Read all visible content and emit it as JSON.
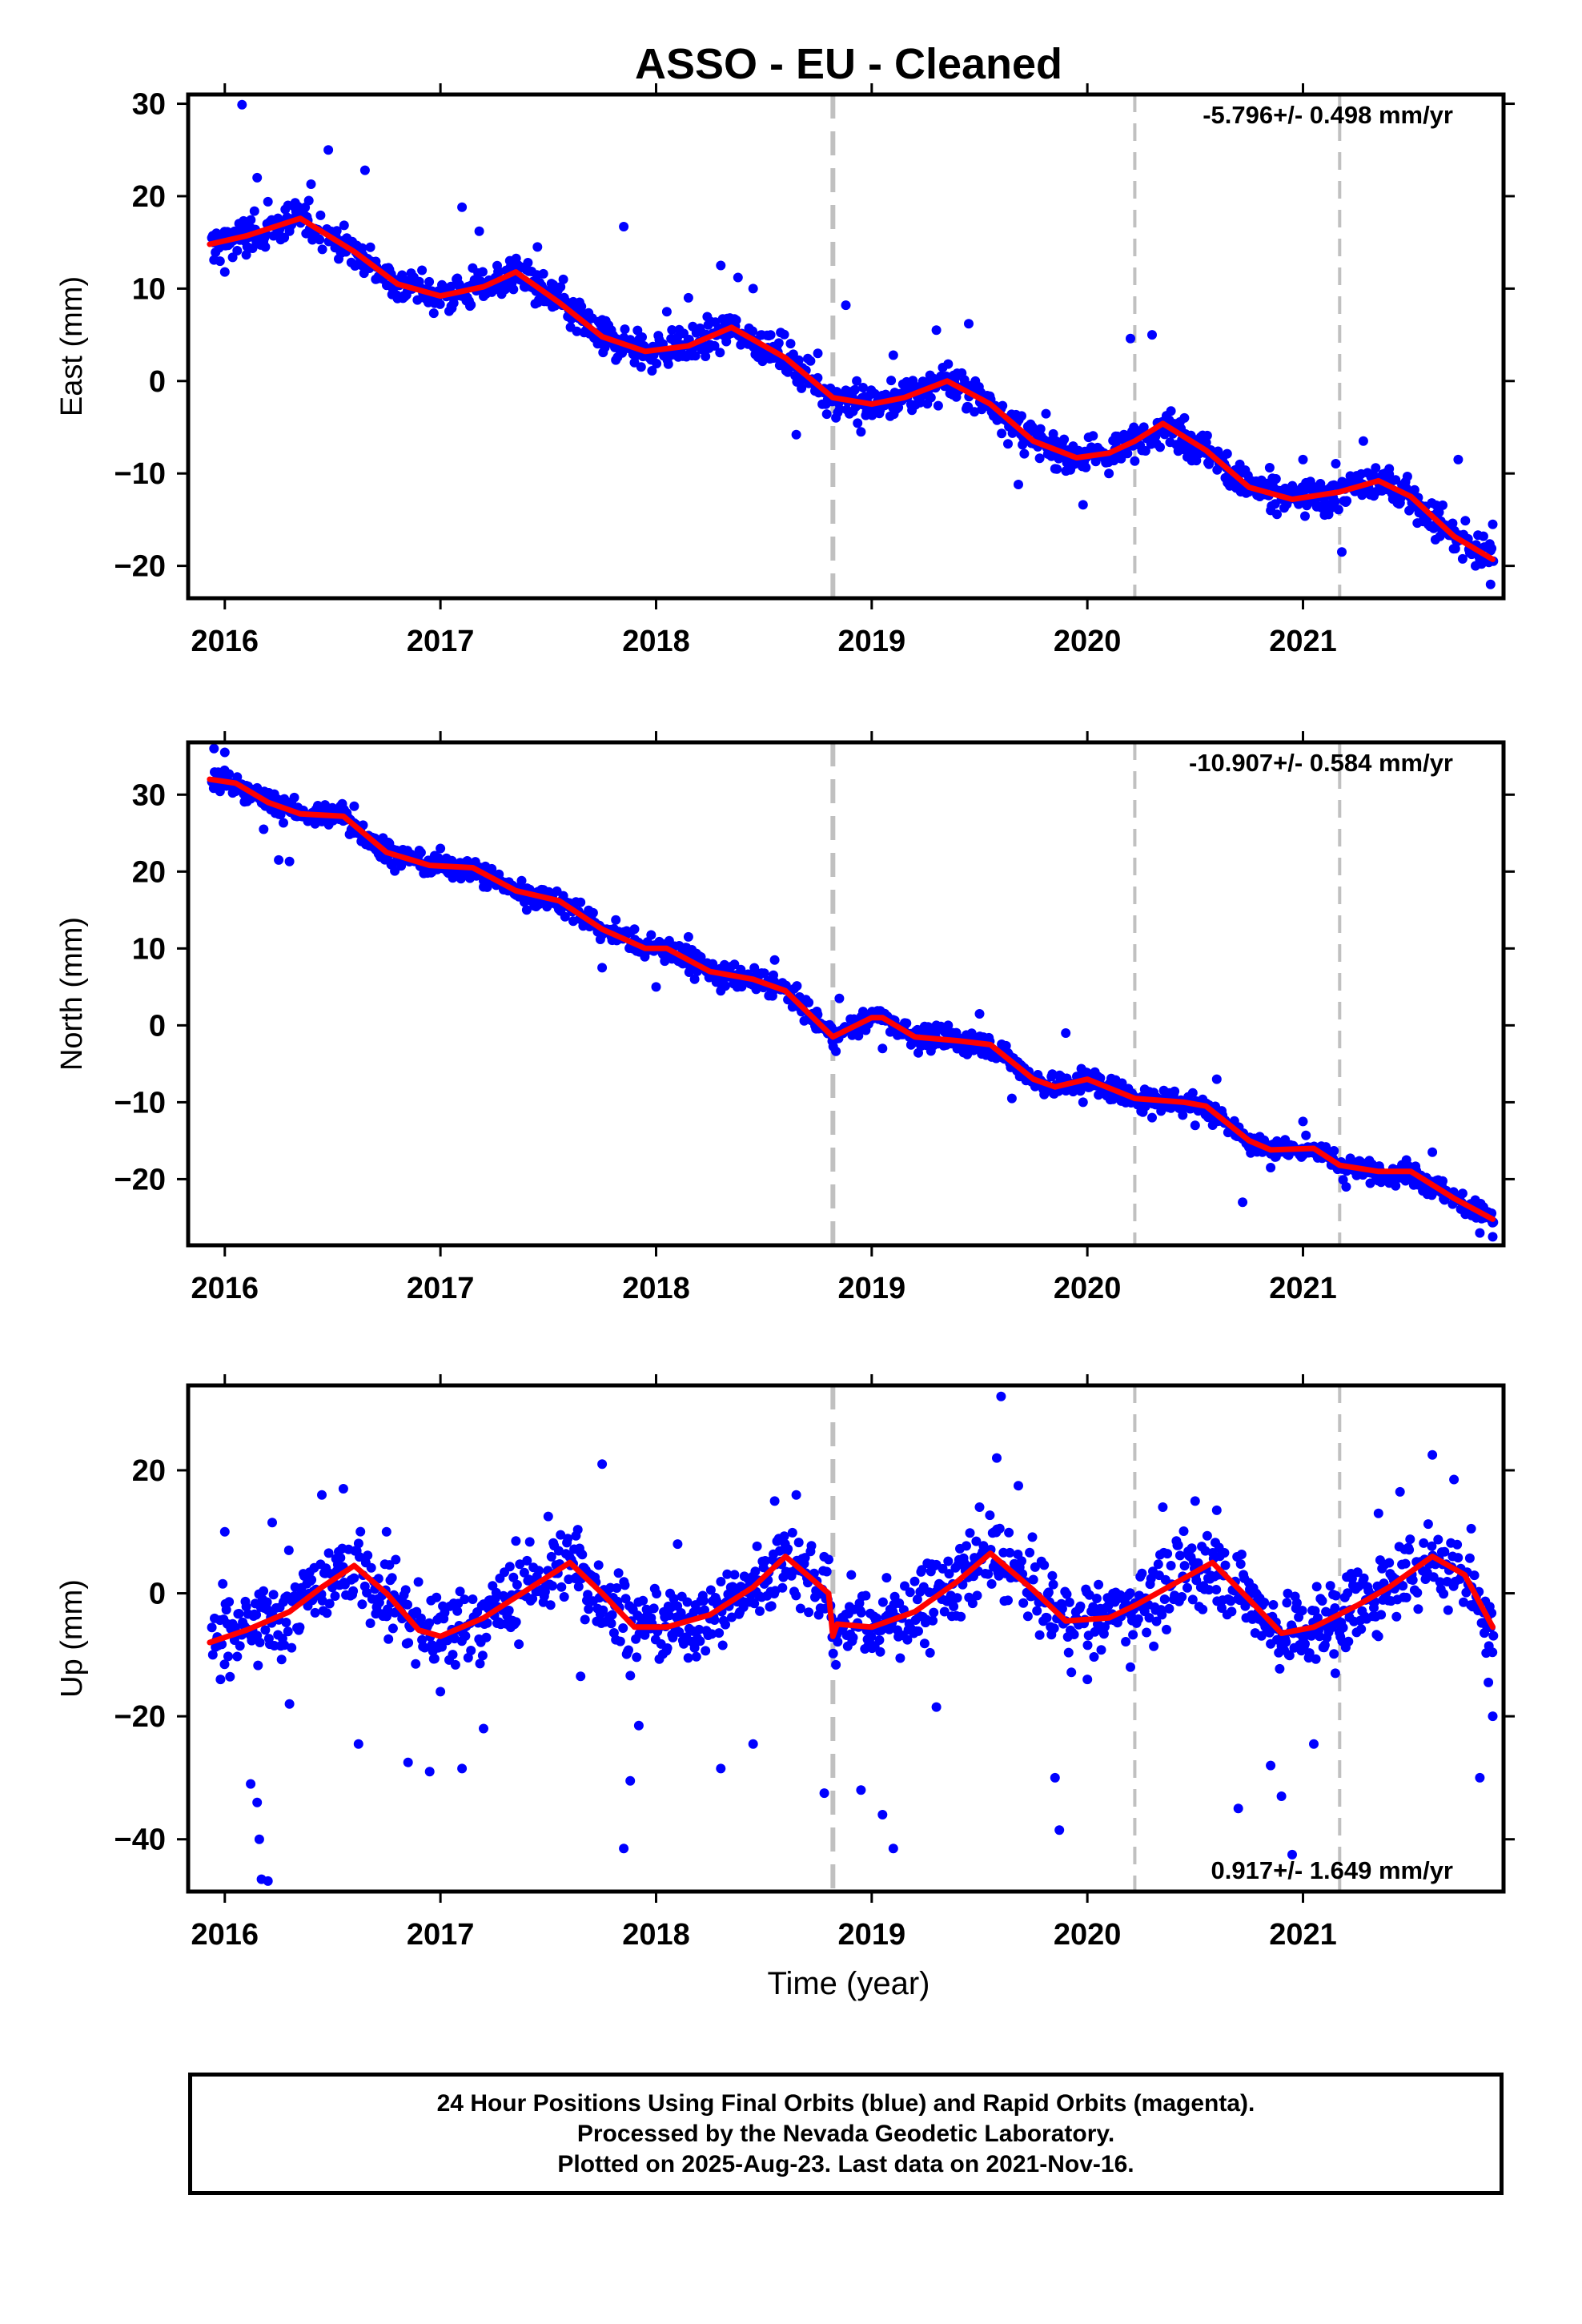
{
  "chart_data": {
    "type": "scatter",
    "title": "ASSO  - EU - Cleaned",
    "xlabel": "Time (year)",
    "x_range": [
      2015.83,
      2021.93
    ],
    "x_ticks": [
      2016,
      2017,
      2018,
      2019,
      2020,
      2021
    ],
    "vertical_lines": [
      {
        "x": 2018.82,
        "style": "thick-dashed"
      },
      {
        "x": 2020.22,
        "style": "dashed"
      },
      {
        "x": 2021.17,
        "style": "dashed"
      }
    ],
    "point_color": "#0000ff",
    "fit_color": "#ff0000",
    "panels": [
      {
        "name": "east",
        "ylabel": "East (mm)",
        "ylim": [
          -23.5,
          31
        ],
        "yticks": [
          30,
          20,
          10,
          0,
          -10,
          -20
        ],
        "rate_label": "-5.796+/- 0.498 mm/yr",
        "rate_position": "top-right",
        "fit": [
          [
            2015.93,
            14.8
          ],
          [
            2016.1,
            15.7
          ],
          [
            2016.35,
            17.6
          ],
          [
            2016.6,
            14.0
          ],
          [
            2016.8,
            10.5
          ],
          [
            2017.0,
            9.2
          ],
          [
            2017.2,
            10.2
          ],
          [
            2017.35,
            11.8
          ],
          [
            2017.55,
            8.5
          ],
          [
            2017.75,
            4.8
          ],
          [
            2017.95,
            3.2
          ],
          [
            2018.15,
            3.8
          ],
          [
            2018.35,
            5.8
          ],
          [
            2018.6,
            2.5
          ],
          [
            2018.82,
            -1.8
          ],
          [
            2019.0,
            -2.5
          ],
          [
            2019.15,
            -1.8
          ],
          [
            2019.35,
            0.0
          ],
          [
            2019.55,
            -2.5
          ],
          [
            2019.75,
            -6.5
          ],
          [
            2019.95,
            -8.3
          ],
          [
            2020.1,
            -7.8
          ],
          [
            2020.22,
            -6.5
          ],
          [
            2020.35,
            -4.6
          ],
          [
            2020.55,
            -7.5
          ],
          [
            2020.75,
            -11.5
          ],
          [
            2020.95,
            -12.8
          ],
          [
            2021.17,
            -12.0
          ],
          [
            2021.35,
            -10.8
          ],
          [
            2021.5,
            -12.5
          ],
          [
            2021.7,
            -16.8
          ],
          [
            2021.88,
            -19.3
          ]
        ],
        "observations_sample": [
          [
            2015.95,
            13.1
          ],
          [
            2016.0,
            11.8
          ],
          [
            2016.08,
            29.9
          ],
          [
            2016.15,
            22.0
          ],
          [
            2016.2,
            19.4
          ],
          [
            2016.3,
            16.2
          ],
          [
            2016.4,
            21.3
          ],
          [
            2016.48,
            25.0
          ],
          [
            2016.55,
            15.2
          ],
          [
            2016.65,
            22.8
          ],
          [
            2016.7,
            11.0
          ],
          [
            2016.85,
            10.2
          ],
          [
            2017.05,
            8.1
          ],
          [
            2017.1,
            18.8
          ],
          [
            2017.18,
            16.2
          ],
          [
            2017.3,
            10.5
          ],
          [
            2017.45,
            14.5
          ],
          [
            2017.6,
            8.0
          ],
          [
            2017.75,
            4.0
          ],
          [
            2017.85,
            16.7
          ],
          [
            2017.9,
            2.0
          ],
          [
            2018.05,
            7.5
          ],
          [
            2018.15,
            9.0
          ],
          [
            2018.3,
            12.5
          ],
          [
            2018.38,
            11.2
          ],
          [
            2018.45,
            10.0
          ],
          [
            2018.55,
            2.5
          ],
          [
            2018.65,
            -5.8
          ],
          [
            2018.75,
            3.0
          ],
          [
            2018.88,
            8.2
          ],
          [
            2018.95,
            -5.5
          ],
          [
            2019.1,
            2.8
          ],
          [
            2019.3,
            5.5
          ],
          [
            2019.45,
            6.2
          ],
          [
            2019.6,
            -3.0
          ],
          [
            2019.68,
            -11.2
          ],
          [
            2019.85,
            -9.5
          ],
          [
            2019.98,
            -13.4
          ],
          [
            2020.1,
            -10.0
          ],
          [
            2020.2,
            4.6
          ],
          [
            2020.3,
            5.0
          ],
          [
            2020.45,
            -4.0
          ],
          [
            2020.65,
            -11.0
          ],
          [
            2020.85,
            -14.0
          ],
          [
            2021.0,
            -8.5
          ],
          [
            2021.1,
            -14.5
          ],
          [
            2021.18,
            -18.5
          ],
          [
            2021.28,
            -6.5
          ],
          [
            2021.4,
            -9.5
          ],
          [
            2021.55,
            -14.0
          ],
          [
            2021.65,
            -16.0
          ],
          [
            2021.72,
            -8.5
          ],
          [
            2021.8,
            -20.0
          ],
          [
            2021.87,
            -22.0
          ],
          [
            2021.88,
            -15.5
          ]
        ]
      },
      {
        "name": "north",
        "ylabel": "North (mm)",
        "ylim": [
          -28.6,
          36.8
        ],
        "yticks": [
          30,
          20,
          10,
          0,
          -10,
          -20
        ],
        "rate_label": "-10.907+/- 0.584 mm/yr",
        "rate_position": "top-right",
        "fit": [
          [
            2015.93,
            32.0
          ],
          [
            2016.05,
            31.5
          ],
          [
            2016.2,
            29.0
          ],
          [
            2016.35,
            27.5
          ],
          [
            2016.55,
            27.2
          ],
          [
            2016.75,
            22.5
          ],
          [
            2016.95,
            20.8
          ],
          [
            2017.15,
            20.5
          ],
          [
            2017.35,
            17.5
          ],
          [
            2017.55,
            16.2
          ],
          [
            2017.75,
            12.5
          ],
          [
            2017.95,
            10.0
          ],
          [
            2018.05,
            10.0
          ],
          [
            2018.25,
            7.0
          ],
          [
            2018.45,
            6.0
          ],
          [
            2018.6,
            4.5
          ],
          [
            2018.82,
            -1.5
          ],
          [
            2019.0,
            1.0
          ],
          [
            2019.05,
            1.0
          ],
          [
            2019.2,
            -1.5
          ],
          [
            2019.4,
            -2.0
          ],
          [
            2019.55,
            -2.5
          ],
          [
            2019.75,
            -7.0
          ],
          [
            2019.85,
            -8.0
          ],
          [
            2020.0,
            -7.0
          ],
          [
            2020.22,
            -9.5
          ],
          [
            2020.45,
            -10.0
          ],
          [
            2020.55,
            -10.5
          ],
          [
            2020.75,
            -15.0
          ],
          [
            2020.85,
            -16.2
          ],
          [
            2021.05,
            -16.0
          ],
          [
            2021.17,
            -18.2
          ],
          [
            2021.35,
            -19.0
          ],
          [
            2021.5,
            -19.0
          ],
          [
            2021.7,
            -22.5
          ],
          [
            2021.88,
            -25.2
          ]
        ],
        "observations_sample": [
          [
            2015.95,
            36.0
          ],
          [
            2016.0,
            35.5
          ],
          [
            2016.1,
            31.0
          ],
          [
            2016.18,
            25.5
          ],
          [
            2016.25,
            21.5
          ],
          [
            2016.3,
            21.3
          ],
          [
            2016.45,
            26.5
          ],
          [
            2016.6,
            28.5
          ],
          [
            2016.75,
            22.0
          ],
          [
            2017.0,
            23.0
          ],
          [
            2017.2,
            18.0
          ],
          [
            2017.4,
            15.0
          ],
          [
            2017.65,
            16.0
          ],
          [
            2017.75,
            7.5
          ],
          [
            2017.9,
            12.5
          ],
          [
            2018.0,
            5.0
          ],
          [
            2018.15,
            11.5
          ],
          [
            2018.3,
            4.5
          ],
          [
            2018.55,
            8.5
          ],
          [
            2018.65,
            2.5
          ],
          [
            2018.78,
            0.0
          ],
          [
            2018.85,
            3.5
          ],
          [
            2019.05,
            -3.0
          ],
          [
            2019.3,
            0.0
          ],
          [
            2019.5,
            1.5
          ],
          [
            2019.65,
            -9.5
          ],
          [
            2019.9,
            -1.0
          ],
          [
            2019.98,
            -10.0
          ],
          [
            2020.15,
            -8.0
          ],
          [
            2020.3,
            -12.0
          ],
          [
            2020.5,
            -13.0
          ],
          [
            2020.6,
            -7.0
          ],
          [
            2020.72,
            -23.0
          ],
          [
            2020.85,
            -18.5
          ],
          [
            2021.0,
            -12.5
          ],
          [
            2021.2,
            -21.0
          ],
          [
            2021.4,
            -20.5
          ],
          [
            2021.6,
            -16.5
          ],
          [
            2021.75,
            -24.0
          ],
          [
            2021.82,
            -27.0
          ],
          [
            2021.88,
            -27.5
          ]
        ]
      },
      {
        "name": "up",
        "ylabel": "Up (mm)",
        "ylim": [
          -48.5,
          33.8
        ],
        "yticks": [
          20,
          0,
          -20,
          -40
        ],
        "rate_label": "0.917+/- 1.649 mm/yr",
        "rate_position": "bottom-right",
        "fit": [
          [
            2015.93,
            -8.0
          ],
          [
            2016.1,
            -6.0
          ],
          [
            2016.3,
            -3.0
          ],
          [
            2016.45,
            1.0
          ],
          [
            2016.6,
            4.5
          ],
          [
            2016.75,
            0.0
          ],
          [
            2016.9,
            -6.0
          ],
          [
            2017.0,
            -7.0
          ],
          [
            2017.2,
            -4.0
          ],
          [
            2017.4,
            0.5
          ],
          [
            2017.6,
            5.0
          ],
          [
            2017.75,
            0.0
          ],
          [
            2017.9,
            -5.5
          ],
          [
            2018.05,
            -5.5
          ],
          [
            2018.25,
            -3.5
          ],
          [
            2018.45,
            1.0
          ],
          [
            2018.6,
            6.0
          ],
          [
            2018.8,
            0.0
          ],
          [
            2018.82,
            -7.0
          ],
          [
            2018.84,
            -5.0
          ],
          [
            2019.0,
            -5.5
          ],
          [
            2019.2,
            -3.0
          ],
          [
            2019.4,
            2.0
          ],
          [
            2019.55,
            6.5
          ],
          [
            2019.75,
            0.5
          ],
          [
            2019.9,
            -4.5
          ],
          [
            2020.1,
            -4.0
          ],
          [
            2020.22,
            -2.0
          ],
          [
            2020.4,
            1.5
          ],
          [
            2020.58,
            5.0
          ],
          [
            2020.75,
            -1.0
          ],
          [
            2020.9,
            -6.5
          ],
          [
            2021.05,
            -5.5
          ],
          [
            2021.25,
            -2.0
          ],
          [
            2021.4,
            1.0
          ],
          [
            2021.6,
            6.0
          ],
          [
            2021.75,
            3.0
          ],
          [
            2021.88,
            -5.5
          ]
        ],
        "observations_sample": [
          [
            2015.98,
            -14.0
          ],
          [
            2016.0,
            10.0
          ],
          [
            2016.12,
            -31.0
          ],
          [
            2016.15,
            -34.0
          ],
          [
            2016.16,
            -40.0
          ],
          [
            2016.17,
            -46.5
          ],
          [
            2016.2,
            -46.8
          ],
          [
            2016.22,
            11.5
          ],
          [
            2016.3,
            -18.0
          ],
          [
            2016.45,
            16.0
          ],
          [
            2016.55,
            17.0
          ],
          [
            2016.62,
            -24.5
          ],
          [
            2016.75,
            10.0
          ],
          [
            2016.85,
            -27.5
          ],
          [
            2016.95,
            -29.0
          ],
          [
            2017.0,
            -16.0
          ],
          [
            2017.1,
            -28.5
          ],
          [
            2017.2,
            -22.0
          ],
          [
            2017.35,
            8.5
          ],
          [
            2017.5,
            12.5
          ],
          [
            2017.65,
            -13.5
          ],
          [
            2017.75,
            21.0
          ],
          [
            2017.85,
            -41.5
          ],
          [
            2017.88,
            -30.5
          ],
          [
            2017.92,
            -21.5
          ],
          [
            2018.1,
            8.0
          ],
          [
            2018.3,
            -28.5
          ],
          [
            2018.45,
            -24.5
          ],
          [
            2018.55,
            15.0
          ],
          [
            2018.65,
            16.0
          ],
          [
            2018.78,
            -32.5
          ],
          [
            2018.95,
            -32.0
          ],
          [
            2019.05,
            -36.0
          ],
          [
            2019.1,
            -41.5
          ],
          [
            2019.3,
            -18.5
          ],
          [
            2019.5,
            14.0
          ],
          [
            2019.58,
            22.0
          ],
          [
            2019.6,
            32.0
          ],
          [
            2019.68,
            17.5
          ],
          [
            2019.85,
            -30.0
          ],
          [
            2019.87,
            -38.5
          ],
          [
            2020.0,
            -14.0
          ],
          [
            2020.2,
            -12.0
          ],
          [
            2020.35,
            14.0
          ],
          [
            2020.5,
            15.0
          ],
          [
            2020.6,
            13.5
          ],
          [
            2020.7,
            -35.0
          ],
          [
            2020.85,
            -28.0
          ],
          [
            2020.9,
            -33.0
          ],
          [
            2020.95,
            -42.5
          ],
          [
            2021.05,
            -24.5
          ],
          [
            2021.15,
            -13.0
          ],
          [
            2021.35,
            13.0
          ],
          [
            2021.45,
            16.5
          ],
          [
            2021.6,
            22.5
          ],
          [
            2021.7,
            18.5
          ],
          [
            2021.78,
            10.5
          ],
          [
            2021.82,
            -30.0
          ],
          [
            2021.86,
            -14.5
          ],
          [
            2021.88,
            -20.0
          ]
        ]
      }
    ]
  },
  "footer": {
    "line1": "24 Hour Positions Using Final Orbits (blue) and Rapid Orbits (magenta).",
    "line2": "Processed by the Nevada Geodetic Laboratory.",
    "line3": "Plotted on 2025-Aug-23. Last data on 2021-Nov-16."
  }
}
